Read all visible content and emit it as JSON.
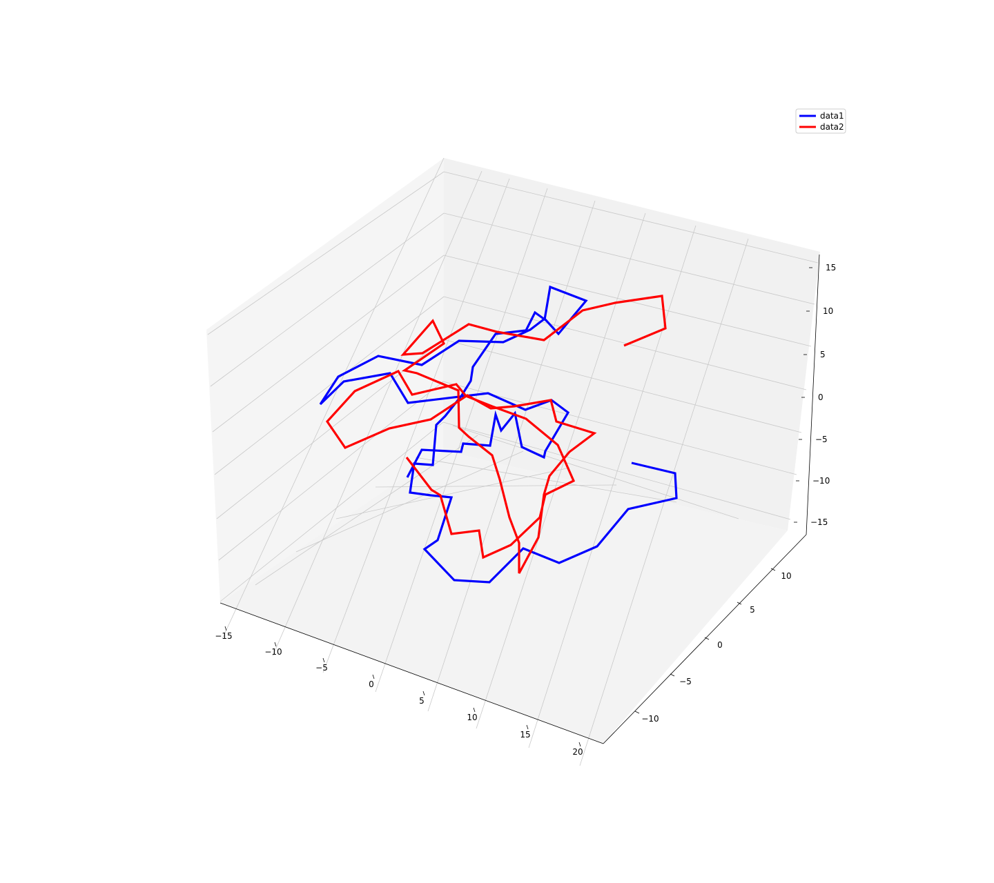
{
  "chart_data": {
    "type": "line",
    "projection": "3d",
    "title": "",
    "xlabel": "",
    "ylabel": "",
    "zlabel": "",
    "xlim": [
      -15,
      20
    ],
    "ylim": [
      -12,
      12
    ],
    "zlim": [
      -16,
      16
    ],
    "x_ticks": [
      "−15",
      "−10",
      "−5",
      "0",
      "5",
      "10",
      "15",
      "20"
    ],
    "y_ticks": [
      "−10",
      "−5",
      "0",
      "5",
      "10"
    ],
    "z_ticks": [
      "−15",
      "−10",
      "−5",
      "0",
      "5",
      "10",
      "15"
    ],
    "grid": true,
    "legend_position": "top-right",
    "series": [
      {
        "name": "data1",
        "color": "#0000ff",
        "projected_path": [
          [
            915,
            671
          ],
          [
            978,
            686
          ],
          [
            980,
            722
          ],
          [
            910,
            738
          ],
          [
            865,
            792
          ],
          [
            810,
            816
          ],
          [
            758,
            795
          ],
          [
            709,
            844
          ],
          [
            658,
            841
          ],
          [
            615,
            796
          ],
          [
            634,
            783
          ],
          [
            654,
            721
          ],
          [
            624,
            718
          ],
          [
            594,
            714
          ],
          [
            600,
            672
          ],
          [
            627,
            674
          ],
          [
            632,
            616
          ],
          [
            645,
            603
          ],
          [
            669,
            573
          ],
          [
            682,
            552
          ],
          [
            685,
            532
          ],
          [
            718,
            484
          ],
          [
            762,
            479
          ],
          [
            775,
            453
          ],
          [
            789,
            463
          ],
          [
            797,
            416
          ],
          [
            849,
            436
          ],
          [
            809,
            484
          ],
          [
            789,
            462
          ],
          [
            768,
            478
          ],
          [
            729,
            496
          ],
          [
            665,
            494
          ],
          [
            611,
            529
          ],
          [
            548,
            516
          ],
          [
            490,
            546
          ],
          [
            464,
            586
          ],
          [
            498,
            553
          ],
          [
            565,
            541
          ],
          [
            591,
            584
          ],
          [
            707,
            570
          ],
          [
            761,
            594
          ],
          [
            799,
            580
          ],
          [
            823,
            598
          ],
          [
            790,
            654
          ],
          [
            788,
            663
          ],
          [
            756,
            648
          ],
          [
            746,
            599
          ],
          [
            726,
            624
          ],
          [
            718,
            601
          ],
          [
            710,
            646
          ],
          [
            671,
            643
          ],
          [
            668,
            655
          ],
          [
            611,
            652
          ],
          [
            590,
            692
          ]
        ]
      },
      {
        "name": "data2",
        "color": "#ff0000",
        "projected_path": [
          [
            904,
            501
          ],
          [
            964,
            476
          ],
          [
            959,
            429
          ],
          [
            891,
            439
          ],
          [
            844,
            450
          ],
          [
            788,
            493
          ],
          [
            720,
            481
          ],
          [
            679,
            470
          ],
          [
            612,
            512
          ],
          [
            584,
            514
          ],
          [
            627,
            465
          ],
          [
            643,
            498
          ],
          [
            586,
            537
          ],
          [
            604,
            541
          ],
          [
            664,
            566
          ],
          [
            665,
            620
          ],
          [
            679,
            633
          ],
          [
            713,
            660
          ],
          [
            724,
            695
          ],
          [
            738,
            750
          ],
          [
            752,
            787
          ],
          [
            752,
            831
          ],
          [
            780,
            779
          ],
          [
            788,
            717
          ],
          [
            796,
            690
          ],
          [
            825,
            655
          ],
          [
            861,
            628
          ],
          [
            806,
            611
          ],
          [
            798,
            580
          ],
          [
            745,
            589
          ],
          [
            711,
            592
          ],
          [
            677,
            573
          ],
          [
            624,
            608
          ],
          [
            564,
            621
          ],
          [
            500,
            649
          ],
          [
            474,
            611
          ],
          [
            514,
            567
          ],
          [
            577,
            538
          ],
          [
            597,
            572
          ],
          [
            661,
            557
          ],
          [
            675,
            574
          ],
          [
            713,
            589
          ],
          [
            762,
            607
          ],
          [
            808,
            645
          ],
          [
            831,
            697
          ],
          [
            790,
            717
          ],
          [
            782,
            750
          ],
          [
            740,
            790
          ],
          [
            700,
            808
          ],
          [
            694,
            769
          ],
          [
            654,
            774
          ],
          [
            638,
            718
          ],
          [
            625,
            710
          ],
          [
            589,
            663
          ]
        ]
      }
    ]
  }
}
